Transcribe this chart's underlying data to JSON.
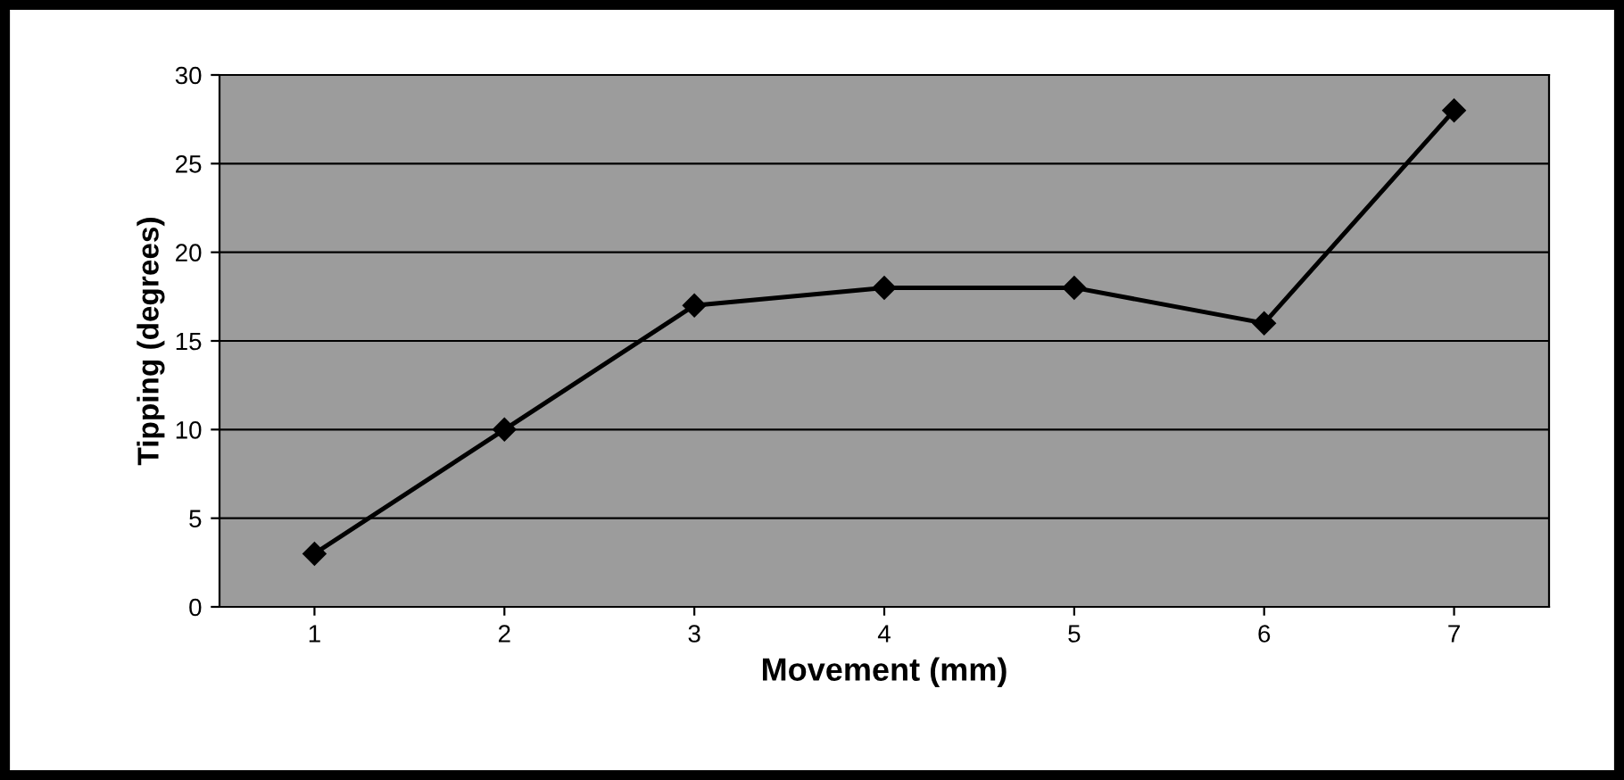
{
  "chart_data": {
    "type": "line",
    "xlabel": "Movement (mm)",
    "ylabel": "Tipping (degrees)",
    "categories": [
      "1",
      "2",
      "3",
      "4",
      "5",
      "6",
      "7"
    ],
    "series": [
      {
        "color": "#000000",
        "values": [
          3,
          10,
          17,
          18,
          18,
          16,
          28
        ]
      }
    ],
    "ylim": [
      0,
      30
    ],
    "yticks": [
      0,
      5,
      10,
      15,
      20,
      25,
      30
    ],
    "grid": "y",
    "legend": false,
    "marker": "diamond",
    "line_style": "solid"
  }
}
